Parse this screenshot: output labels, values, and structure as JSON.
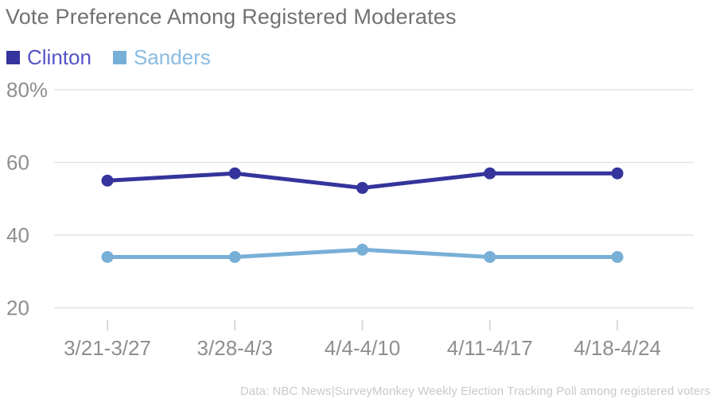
{
  "title": "Vote Preference Among Registered Moderates",
  "footer": "Data: NBC News|SurveyMonkey Weekly Election Tracking Poll among registered voters",
  "legend": [
    {
      "label": "Clinton",
      "swatch_color": "#34349C",
      "text_color": "#5353C8"
    },
    {
      "label": "Sanders",
      "swatch_color": "#78AFD7",
      "text_color": "#8ABCE2"
    }
  ],
  "chart_data": {
    "type": "line",
    "title": "Vote Preference Among Registered Moderates",
    "categories": [
      "3/21-3/27",
      "3/28-4/3",
      "4/4-4/10",
      "4/11-4/17",
      "4/18-4/24"
    ],
    "series": [
      {
        "name": "Clinton",
        "color": "#34349C",
        "values": [
          55,
          57,
          53,
          57,
          57
        ]
      },
      {
        "name": "Sanders",
        "color": "#78AFD7",
        "values": [
          34,
          34,
          36,
          34,
          34
        ]
      }
    ],
    "xlabel": "",
    "ylabel": "",
    "ylim": [
      20,
      80
    ],
    "yticks": [
      80,
      60,
      40,
      20
    ],
    "ytick_labels": [
      "80%",
      "60",
      "40",
      "20"
    ],
    "grid": true,
    "legend_position": "top-left",
    "source_note": "Data: NBC News|SurveyMonkey Weekly Election Tracking Poll among registered voters"
  },
  "style_colors": {
    "title_text": "#717171",
    "axis_text": "#8E8E8E",
    "gridline": "#E3E3E3",
    "tick_mark": "#D9D9D9",
    "footer_text": "#C9C9C9"
  }
}
